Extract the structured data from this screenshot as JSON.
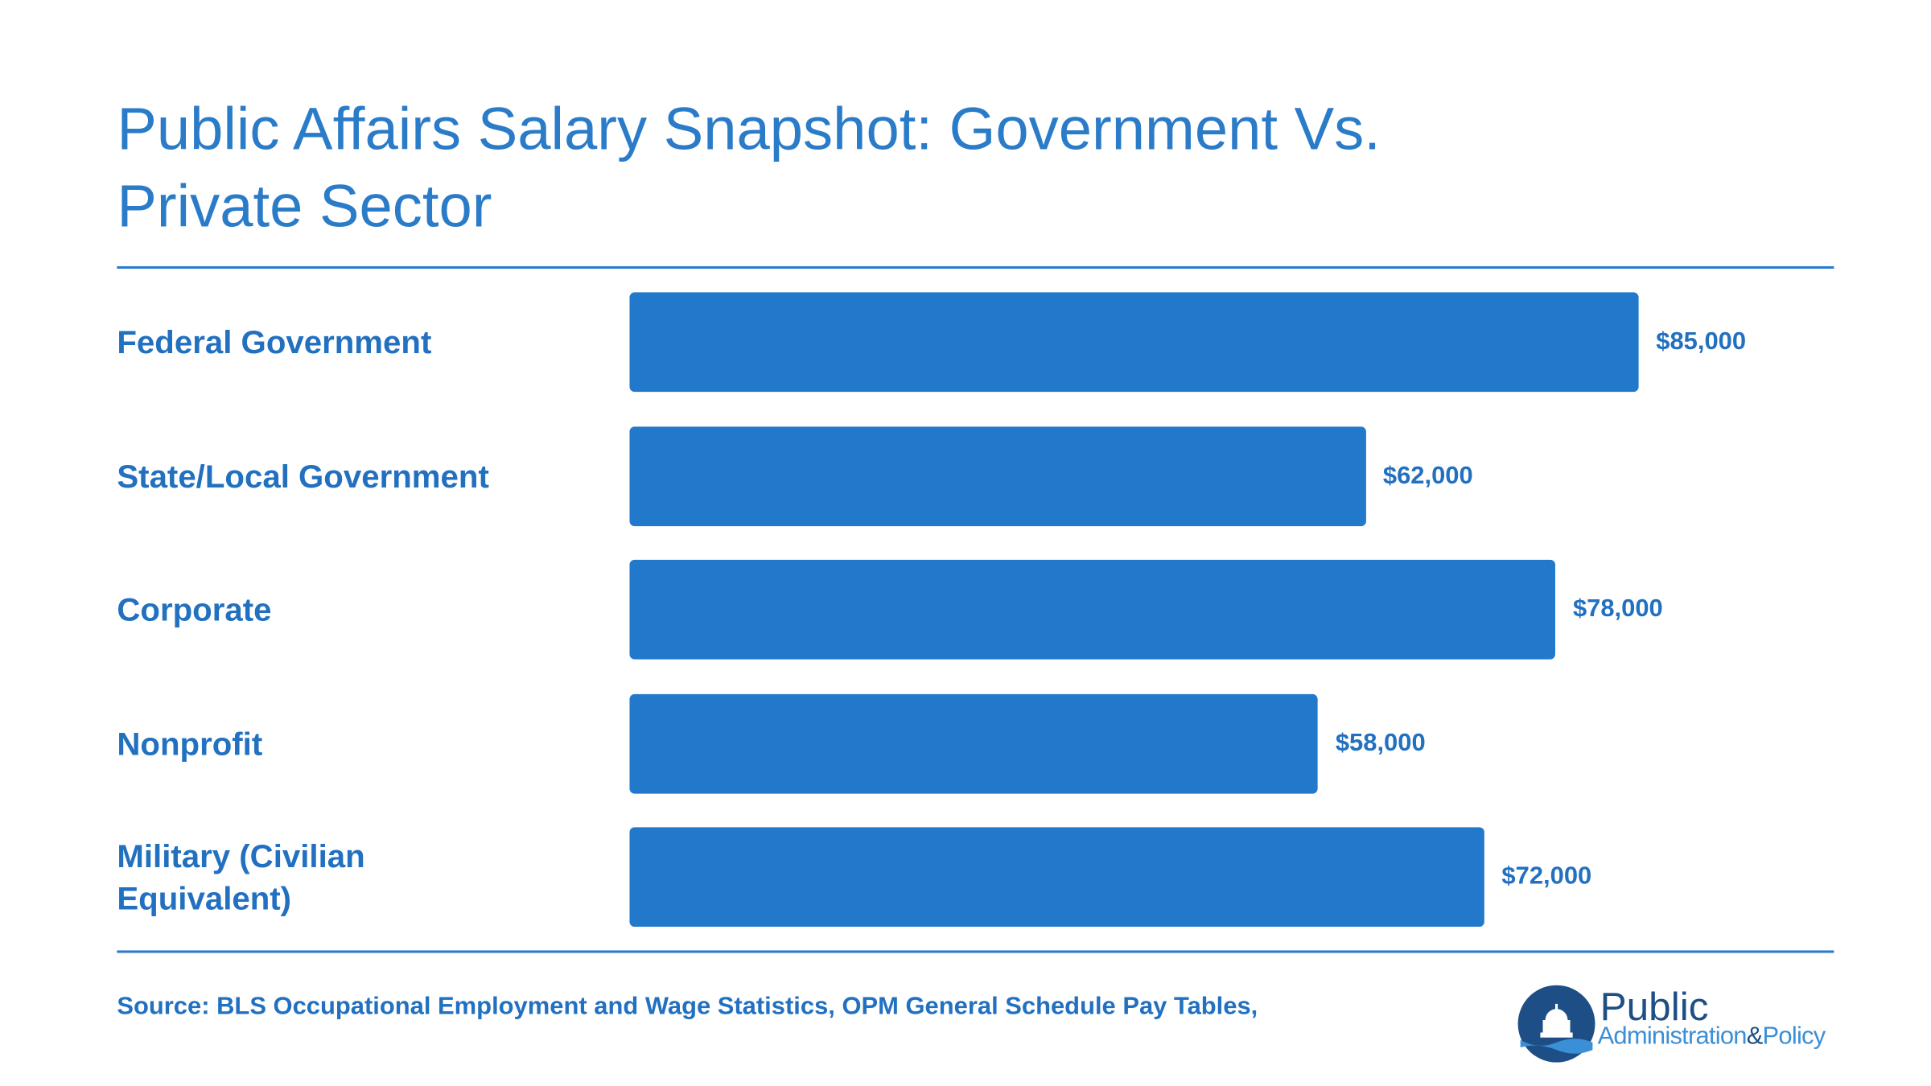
{
  "chart_data": {
    "type": "bar",
    "orientation": "horizontal",
    "title": "Public Affairs Salary Snapshot: Government Vs. Private Sector",
    "categories": [
      "Federal Government",
      "State/Local Government",
      "Corporate",
      "Nonprofit",
      "Military (Civilian Equivalent)"
    ],
    "values": [
      85000,
      62000,
      78000,
      58000,
      72000
    ],
    "value_labels": [
      "$85,000",
      "$62,000",
      "$78,000",
      "$58,000",
      "$72,000"
    ],
    "color": "#2279cb",
    "source": "Source: BLS Occupational Employment and Wage Statistics, OPM General Schedule Pay Tables,"
  },
  "logo": {
    "line1": "Public",
    "word1": "Administration",
    "amp": "&",
    "word2": "Policy"
  }
}
